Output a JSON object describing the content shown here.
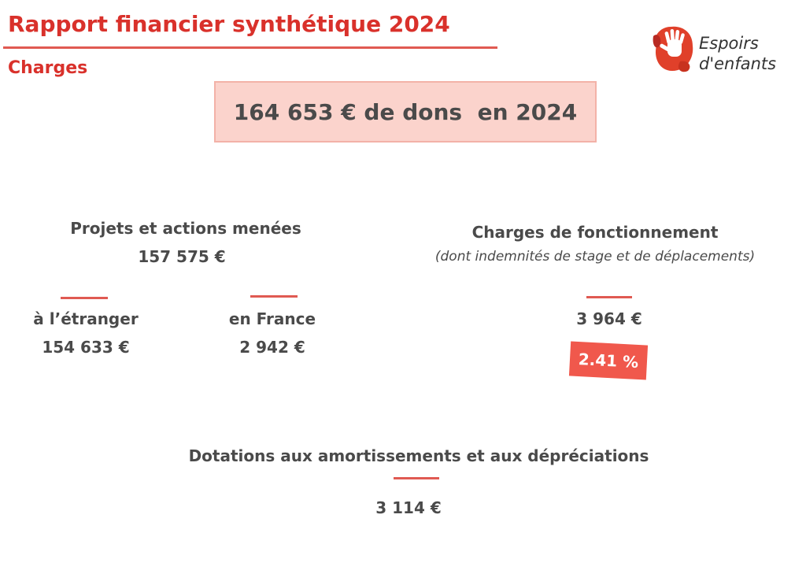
{
  "header": {
    "title": "Rapport financier synthétique 2024",
    "section": "Charges"
  },
  "logo": {
    "icon": "hand-icon",
    "line1": "Espoirs",
    "line2": "d'enfants",
    "color": "#e0402a"
  },
  "donations": {
    "text": "164 653 € de dons  en 2024"
  },
  "projects": {
    "label": "Projets et actions menées",
    "amount": "157 575 €",
    "abroad": {
      "label": "à l’étranger",
      "amount": "154 633 €"
    },
    "france": {
      "label": "en France",
      "amount": "2 942 €"
    }
  },
  "operating": {
    "label": "Charges de fonctionnement",
    "note": "(dont indemnités de stage et de déplacements)",
    "amount": "3 964 €",
    "percent": "2.41 %"
  },
  "depreciation": {
    "label": "Dotations aux amortissements et aux dépréciations",
    "amount": "3 114 €"
  },
  "colors": {
    "accent": "#d9312b",
    "rule": "#e05a52",
    "box_fill": "#fbd3cc",
    "badge": "#f0584c"
  }
}
